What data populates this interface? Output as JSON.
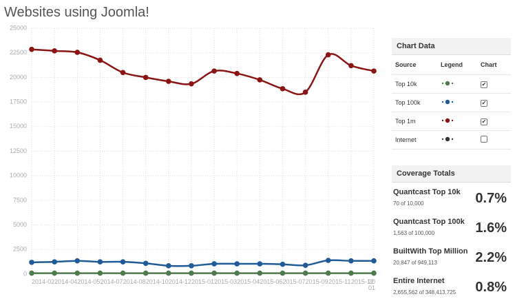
{
  "chart_data": {
    "type": "line",
    "title": "Websites using Joomla!",
    "categories": [
      "2014-02",
      "2014-04",
      "2014-05",
      "2014-07",
      "2014-08",
      "2014-10",
      "2014-12",
      "2015-01",
      "2015-03",
      "2015-04",
      "2015-06",
      "2015-07",
      "2015-09",
      "2015-11",
      "2015-12",
      "20 01"
    ],
    "series": [
      {
        "name": "Top 1m",
        "color": "#8b1414",
        "values": [
          22850,
          22700,
          22550,
          21750,
          20500,
          20000,
          19600,
          19350,
          20650,
          20400,
          19750,
          18850,
          18500,
          22300,
          21200,
          20650
        ]
      },
      {
        "name": "Top 100k",
        "color": "#1f5b96",
        "values": [
          1200,
          1250,
          1350,
          1250,
          1250,
          1100,
          850,
          850,
          1050,
          1050,
          1050,
          1000,
          900,
          1400,
          1350,
          1350
        ]
      },
      {
        "name": "Top 10k",
        "color": "#4e7a4e",
        "values": [
          100,
          100,
          100,
          100,
          100,
          100,
          100,
          100,
          100,
          100,
          100,
          100,
          100,
          100,
          100,
          100
        ]
      }
    ],
    "ylim": [
      0,
      25000
    ],
    "yticks": [
      0,
      2500,
      5000,
      7500,
      10000,
      12500,
      15000,
      17500,
      20000,
      22500,
      25000
    ],
    "grid": true
  },
  "sidebar": {
    "chart_data_panel": {
      "title": "Chart Data",
      "headers": [
        "Source",
        "Legend",
        "Chart"
      ],
      "rows": [
        {
          "source": "Top 10k",
          "color": "#4e7a4e",
          "checked": true
        },
        {
          "source": "Top 100k",
          "color": "#1f5b96",
          "checked": true
        },
        {
          "source": "Top 1m",
          "color": "#8b1414",
          "checked": true
        },
        {
          "source": "Internet",
          "color": "#333333",
          "checked": false
        }
      ]
    },
    "coverage": {
      "title": "Coverage Totals",
      "items": [
        {
          "name": "Quantcast Top 10k",
          "detail": "70 of 10,000",
          "percent": "0.7%"
        },
        {
          "name": "Quantcast Top 100k",
          "detail": "1,563 of 100,000",
          "percent": "1.6%"
        },
        {
          "name": "BuiltWith Top Million",
          "detail": "20,847 of 949,113",
          "percent": "2.2%"
        },
        {
          "name": "Entire Internet",
          "detail": "2,655,562 of 348,413,725",
          "percent": "0.8%"
        }
      ]
    }
  }
}
